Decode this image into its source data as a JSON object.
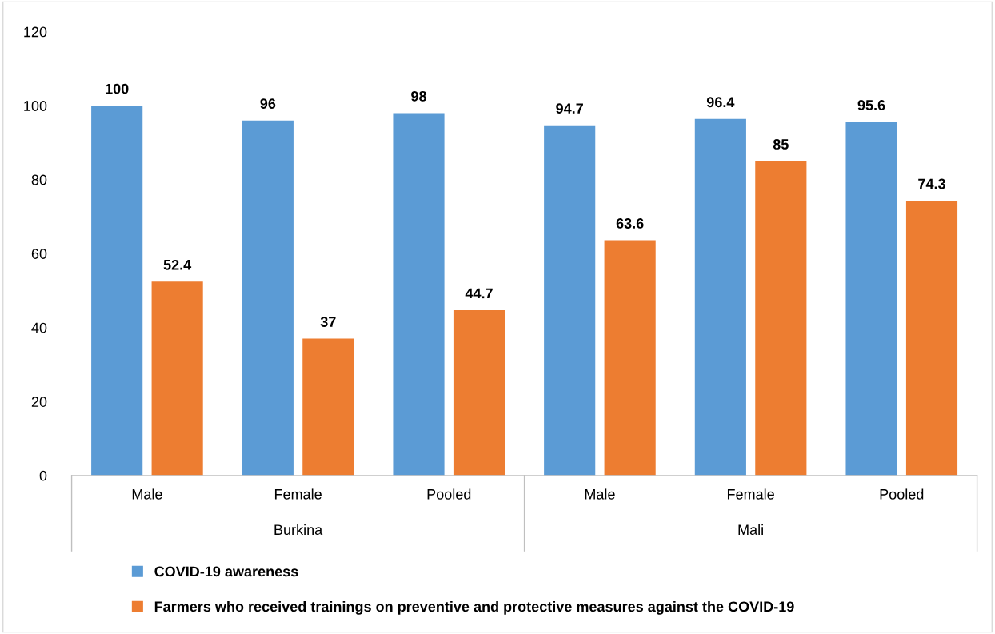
{
  "chart_data": {
    "type": "bar",
    "categories": [
      "Male",
      "Female",
      "Pooled",
      "Male",
      "Female",
      "Pooled"
    ],
    "series": [
      {
        "name": "COVID-19 awareness",
        "color": "#5b9bd5",
        "values": [
          100,
          96,
          98,
          94.7,
          96.4,
          95.6
        ]
      },
      {
        "name": "Farmers who received trainings on preventive and protective measures against the COVID-19",
        "color": "#ed7d31",
        "values": [
          52.4,
          37,
          44.7,
          63.6,
          85,
          74.3
        ]
      }
    ],
    "annotations": [
      "Burkina",
      "Mali"
    ],
    "ylim": [
      0,
      120
    ],
    "yticks": [
      0,
      20,
      40,
      60,
      80,
      100,
      120
    ],
    "data_labels": true,
    "grid": false,
    "legend": "bottom"
  }
}
